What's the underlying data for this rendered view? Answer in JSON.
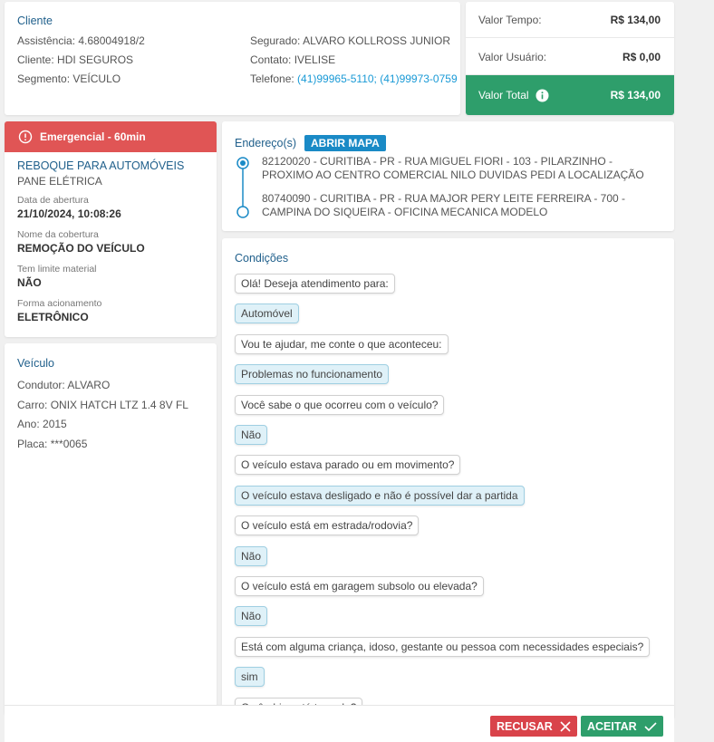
{
  "cliente": {
    "title": "Cliente",
    "left": [
      {
        "label": "Assistência:",
        "value": "4.68004918/2"
      },
      {
        "label": "Cliente:",
        "value": "HDI SEGUROS"
      },
      {
        "label": "Segmento:",
        "value": "VEÍCULO"
      }
    ],
    "right": [
      {
        "label": "Segurado:",
        "value": "ALVARO KOLLROSS JUNIOR"
      },
      {
        "label": "Contato:",
        "value": "IVELISE"
      },
      {
        "label": "Telefone:",
        "value": "(41)99965-5110; (41)99973-0759"
      }
    ]
  },
  "valores": [
    {
      "label": "Valor Tempo:",
      "value": "R$ 134,00"
    },
    {
      "label": "Valor Usuário:",
      "value": "R$ 0,00"
    },
    {
      "label": "Valor Total",
      "value": "R$ 134,00"
    }
  ],
  "servico": {
    "badge": "Emergencial - 60min",
    "title": "REBOQUE PARA AUTOMÓVEIS",
    "subtitle": "PANE ELÉTRICA",
    "fields": [
      {
        "label": "Data de abertura",
        "value": "21/10/2024, 10:08:26"
      },
      {
        "label": "Nome da cobertura",
        "value": "REMOÇÃO DO VEÍCULO"
      },
      {
        "label": "Tem limite material",
        "value": "NÃO"
      },
      {
        "label": "Forma acionamento",
        "value": "ELETRÔNICO"
      }
    ]
  },
  "veiculo": {
    "title": "Veículo",
    "fields": [
      {
        "label": "Condutor:",
        "value": "ALVARO"
      },
      {
        "label": "Carro:",
        "value": "ONIX HATCH LTZ 1.4 8V FL"
      },
      {
        "label": "Ano:",
        "value": "2015"
      },
      {
        "label": "Placa:",
        "value": "***0065"
      }
    ]
  },
  "endereco": {
    "title": "Endereço(s)",
    "button": "ABRIR MAPA",
    "addresses": [
      "82120020 - CURITIBA - PR - RUA MIGUEL FIORI - 103 - PILARZINHO - PROXIMO AO CENTRO COMERCIAL NILO DUVIDAS PEDI A LOCALIZAÇÃO",
      "80740090 - CURITIBA - PR - RUA MAJOR PERY LEITE FERREIRA - 700 - CAMPINA DO SIQUEIRA - OFICINA MECANICA MODELO"
    ]
  },
  "condicoes": {
    "title": "Condições",
    "items": [
      {
        "question": "Olá! Deseja atendimento para:",
        "answer": "Automóvel"
      },
      {
        "question": "Vou te ajudar, me conte o que aconteceu:",
        "answer": "Problemas no funcionamento"
      },
      {
        "question": "Você sabe o que ocorreu com o veículo?",
        "answer": "Não"
      },
      {
        "question": "O veículo estava parado ou em movimento?",
        "answer": "O veículo estava desligado e não é possível dar a partida"
      },
      {
        "question": "O veículo está em estrada/rodovia?",
        "answer": "Não"
      },
      {
        "question": "O veículo está em garagem subsolo ou elevada?",
        "answer": "Não"
      },
      {
        "question": "Está com alguma criança, idoso, gestante ou pessoa com necessidades especiais?",
        "answer": "sim"
      },
      {
        "question": "O câmbio está travado?"
      }
    ]
  },
  "actions": {
    "recusar": "RECUSAR",
    "aceitar": "ACEITAR"
  }
}
